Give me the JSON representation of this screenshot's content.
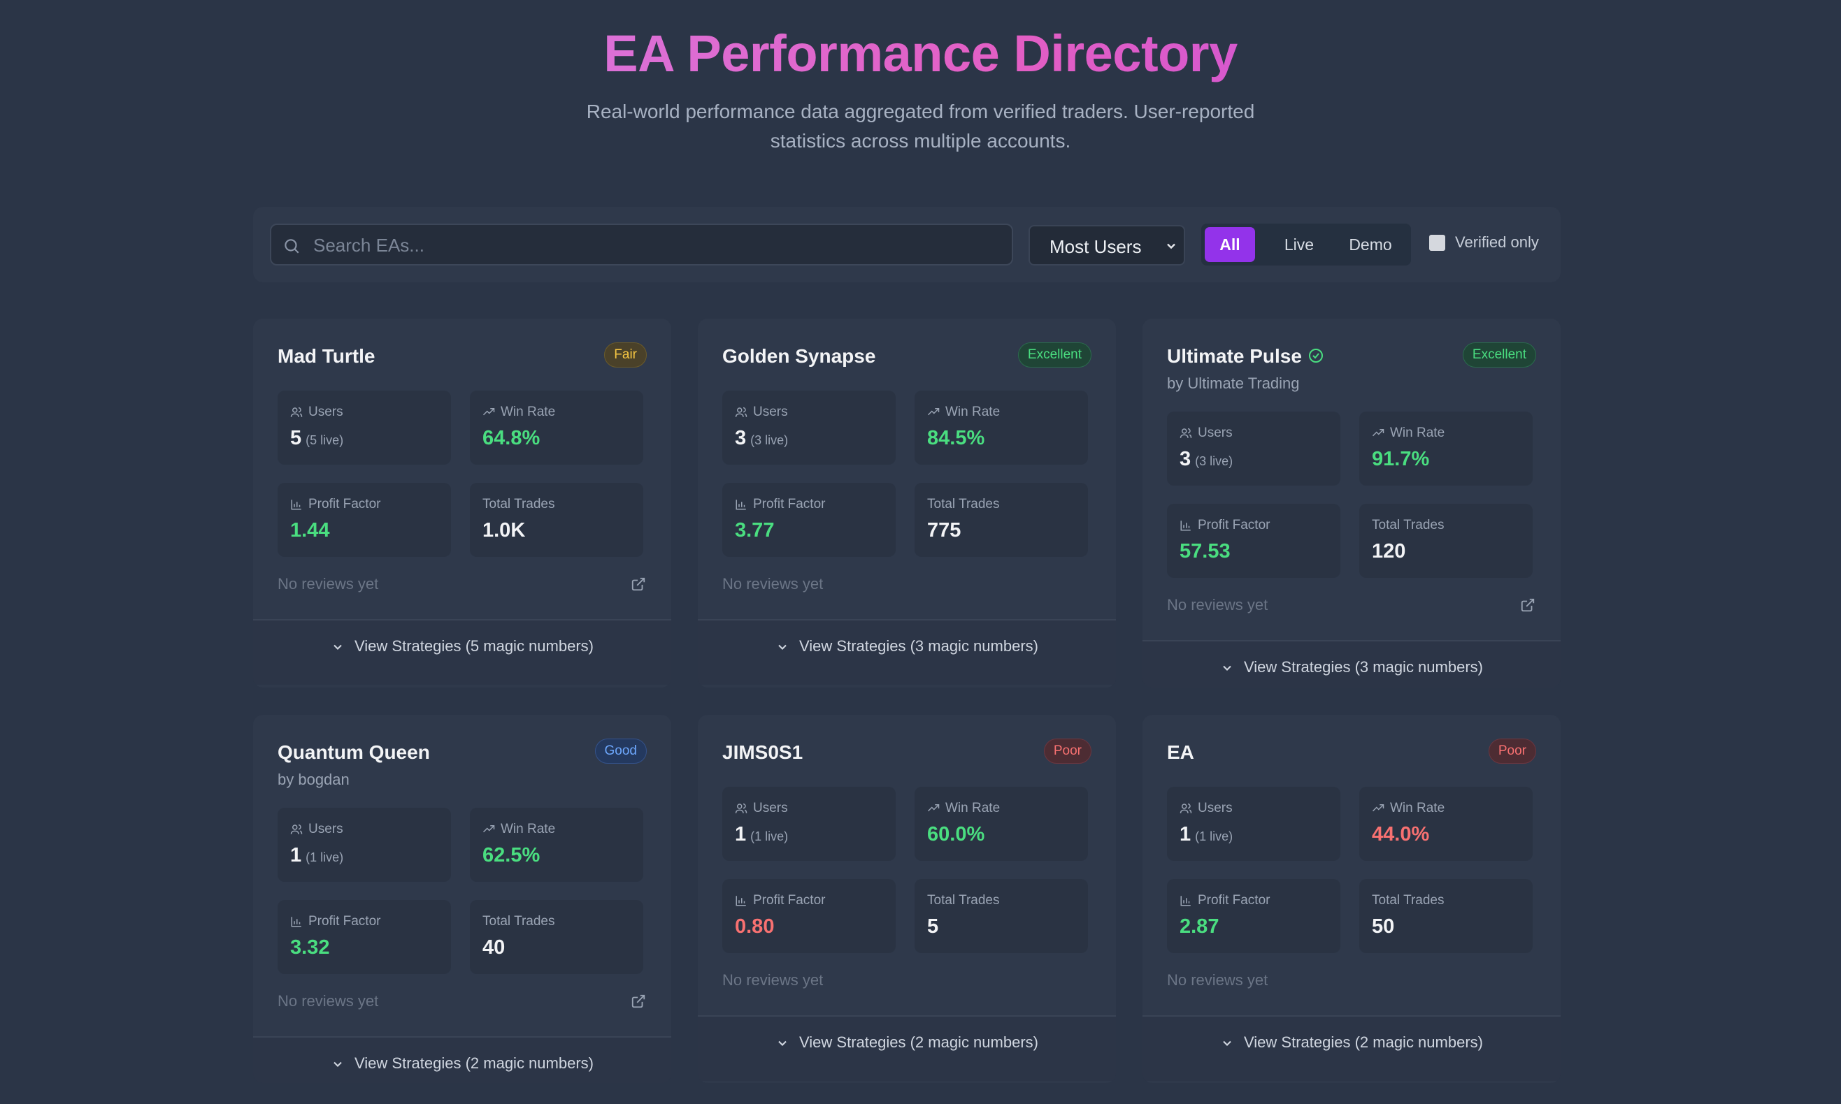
{
  "header": {
    "title": "EA Performance Directory",
    "subtitle_line1": "Real-world performance data aggregated from verified traders. User-reported",
    "subtitle_line2": "statistics across multiple accounts."
  },
  "filters": {
    "search_placeholder": "Search EAs...",
    "sort_value": "Most Users",
    "segments": [
      "All",
      "Live",
      "Demo"
    ],
    "active_segment": "All",
    "verified_label": "Verified only",
    "verified_checked": false
  },
  "labels": {
    "users": "Users",
    "win_rate": "Win Rate",
    "profit_factor": "Profit Factor",
    "total_trades": "Total Trades",
    "no_reviews": "No reviews yet"
  },
  "colors": {
    "accent": "#9333ea",
    "positive": "#4ade80",
    "negative": "#f87171"
  },
  "cards": [
    {
      "name": "Mad Turtle",
      "by": "",
      "badge": "Fair",
      "users": "5",
      "live": "(5 live)",
      "win_rate": "64.8%",
      "profit_factor": "1.44",
      "total_trades": "1.0K",
      "strategies": "View Strategies (5 magic numbers)",
      "verified": false
    },
    {
      "name": "Golden Synapse",
      "by": "",
      "badge": "Excellent",
      "users": "3",
      "live": "(3 live)",
      "win_rate": "84.5%",
      "profit_factor": "3.77",
      "total_trades": "775",
      "strategies": "View Strategies (3 magic numbers)",
      "verified": false
    },
    {
      "name": "Ultimate Pulse",
      "by": "by Ultimate Trading",
      "badge": "Excellent",
      "users": "3",
      "live": "(3 live)",
      "win_rate": "91.7%",
      "profit_factor": "57.53",
      "total_trades": "120",
      "strategies": "View Strategies (3 magic numbers)",
      "verified": true
    },
    {
      "name": "Quantum Queen",
      "by": "by bogdan",
      "badge": "Good",
      "users": "1",
      "live": "(1 live)",
      "win_rate": "62.5%",
      "profit_factor": "3.32",
      "total_trades": "40",
      "strategies": "View Strategies (2 magic numbers)",
      "verified": false
    },
    {
      "name": "JIMS0S1",
      "by": "",
      "badge": "Poor",
      "users": "1",
      "live": "(1 live)",
      "win_rate": "60.0%",
      "profit_factor": "0.80",
      "total_trades": "5",
      "strategies": "View Strategies (2 magic numbers)",
      "verified": false
    },
    {
      "name": "EA",
      "by": "",
      "badge": "Poor",
      "users": "1",
      "live": "(1 live)",
      "win_rate": "44.0%",
      "profit_factor": "2.87",
      "total_trades": "50",
      "strategies": "View Strategies (2 magic numbers)",
      "verified": false
    }
  ]
}
